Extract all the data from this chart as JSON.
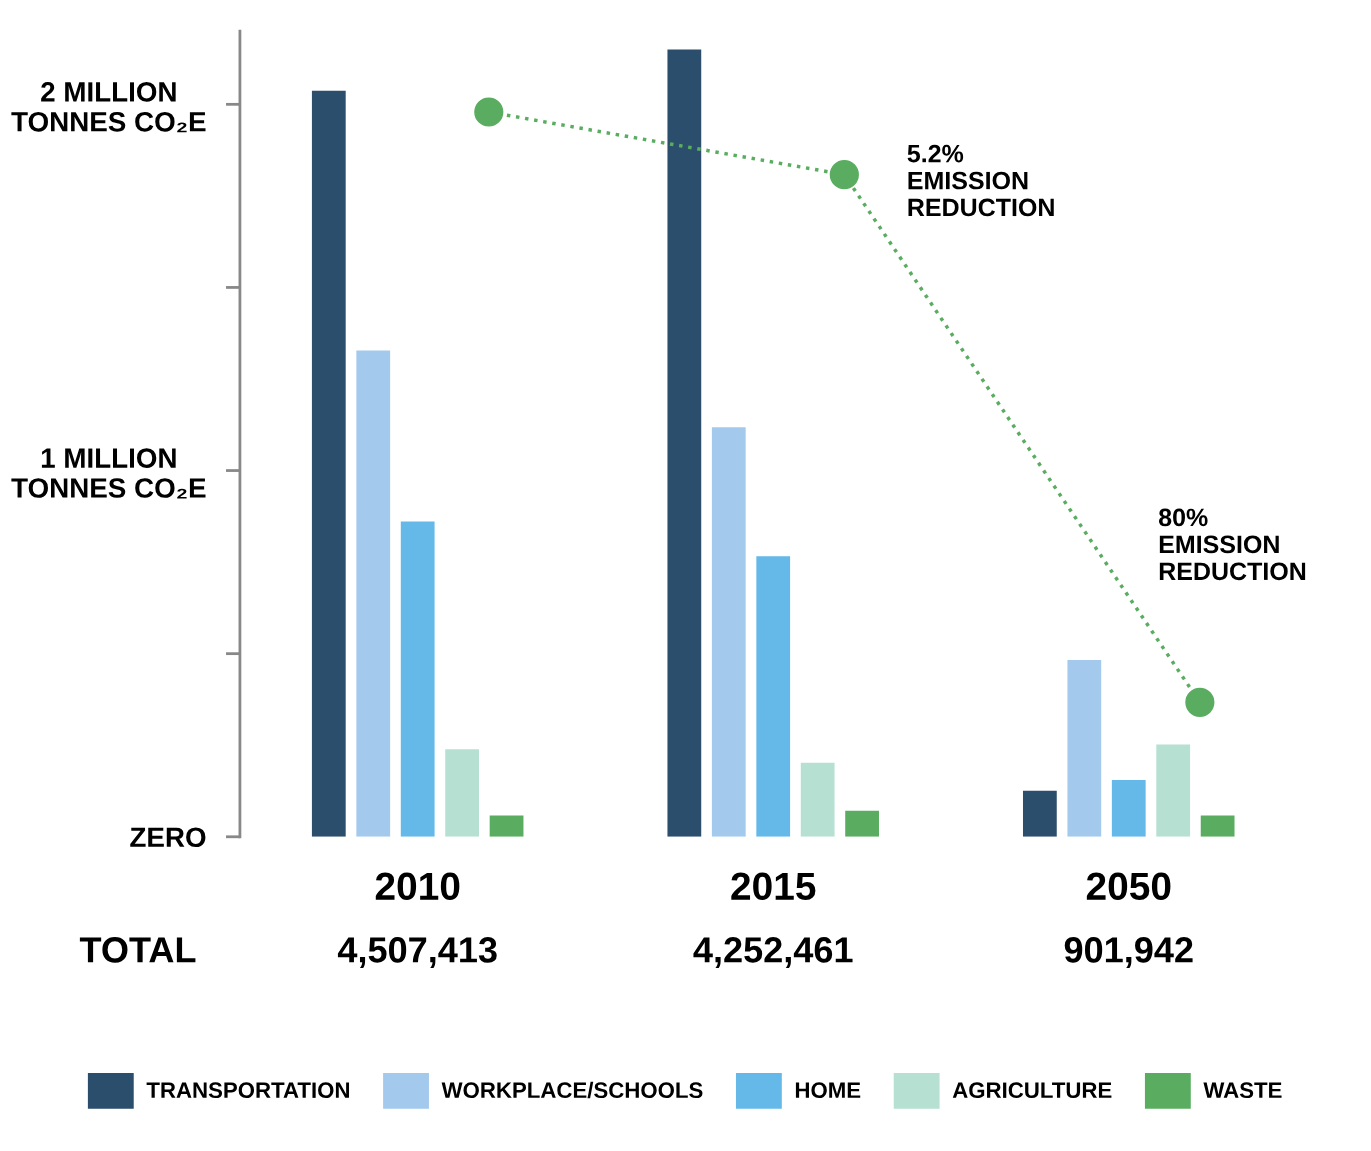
{
  "chart_data": {
    "type": "bar",
    "categories": [
      "2010",
      "2015",
      "2050"
    ],
    "series": [
      {
        "name": "TRANSPORTATION",
        "color": "#2a4e6c",
        "values": [
          2.037,
          2.15,
          0.126
        ]
      },
      {
        "name": "WORKPLACE/SCHOOLS",
        "color": "#a3c9ed",
        "values": [
          1.328,
          1.118,
          0.483
        ]
      },
      {
        "name": "HOME",
        "color": "#64b9e9",
        "values": [
          0.861,
          0.766,
          0.155
        ]
      },
      {
        "name": "AGRICULTURE",
        "color": "#b6e0d2",
        "values": [
          0.239,
          0.202,
          0.252
        ]
      },
      {
        "name": "WASTE",
        "color": "#5aad60",
        "values": [
          0.058,
          0.071,
          0.058
        ]
      },
      {
        "type": "line",
        "color": "#5aad60",
        "values": [
          1.979,
          1.808,
          0.367
        ],
        "marker": "circle",
        "line_style": "dotted"
      }
    ],
    "ylim": [
      0,
      2.2
    ],
    "yticks": [
      {
        "value": 0,
        "label": "ZERO"
      },
      {
        "value": 0.5,
        "label": null
      },
      {
        "value": 1,
        "label": "1 MILLION\nTONNES CO₂E"
      },
      {
        "value": 1.5,
        "label": null
      },
      {
        "value": 2,
        "label": "2 MILLION\nTONNES CO₂E"
      }
    ],
    "annotations": [
      "TOTAL",
      "4,507,413",
      "4,252,461",
      "901,942",
      "5.2%\nEMISSION\nREDUCTION",
      "80%\nEMISSION\nREDUCTION"
    ],
    "grid": false,
    "legend": "bottom"
  }
}
